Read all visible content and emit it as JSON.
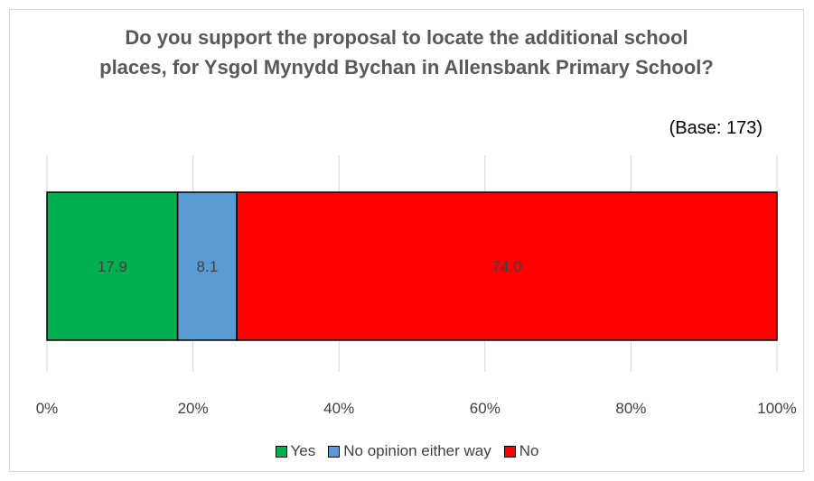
{
  "chart_data": {
    "type": "bar",
    "orientation": "horizontal-stacked-100",
    "title": "Do you support the proposal to locate the additional school places, for Ysgol Mynydd Bychan in Allensbank Primary School?",
    "subtitle": "(Base: 173)",
    "xlabel": "",
    "ylabel": "",
    "xlim": [
      0,
      100
    ],
    "x_ticks": [
      "0%",
      "20%",
      "40%",
      "60%",
      "80%",
      "100%"
    ],
    "grid": true,
    "legend_position": "bottom",
    "series": [
      {
        "name": "Yes",
        "value": 17.9,
        "label": "17.9",
        "color": "#00B050"
      },
      {
        "name": "No opinion either way",
        "value": 8.1,
        "label": "8.1",
        "color": "#5B9BD5"
      },
      {
        "name": "No",
        "value": 74.0,
        "label": "74.0",
        "color": "#FF0000"
      }
    ]
  }
}
